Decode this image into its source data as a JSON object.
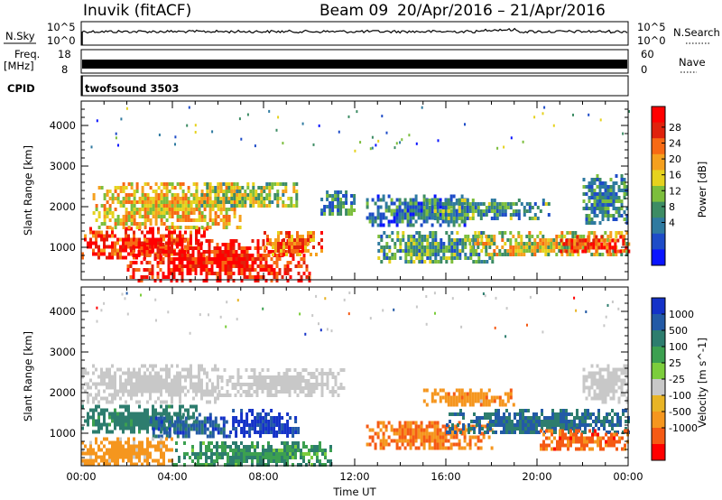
{
  "header": {
    "station": "Inuvik (fitACF)",
    "beam": "Beam 09",
    "date_range": "20/Apr/2016 – 21/Apr/2016"
  },
  "top_panels": {
    "nsky_label": "N.Sky",
    "nsearch_label": "N.Search",
    "noise_tick_high": "10^5",
    "noise_tick_low": "10^0",
    "freq_label": "Freq.",
    "freq_unit": "[MHz]",
    "freq_tick_high": "18",
    "freq_tick_low": "8",
    "nave_label": "Nave",
    "nave_tick_high": "60",
    "nave_tick_low": "0",
    "cpid_label": "CPID",
    "cpid_value": "twofsound 3503"
  },
  "colors": {
    "power_scale": [
      "#0a14ff",
      "#1e4cc8",
      "#2f7aa0",
      "#3d8c64",
      "#7cbe3c",
      "#e6d21e",
      "#f5a01e",
      "#f76a14",
      "#e0220c",
      "#ff0000"
    ],
    "velocity_scale": [
      "#1432c8",
      "#235aa6",
      "#2d7d6e",
      "#3ca050",
      "#7ccd3c",
      "#c8c8c8",
      "#e8b426",
      "#f5961e",
      "#f55a14",
      "#ff0000"
    ],
    "ground_scatter": "#c8c8c8"
  },
  "chart_data": [
    {
      "type": "heatmap",
      "panel": "power",
      "ylabel": "Slant Range [km]",
      "xlabel": "",
      "x_ticks": [
        "00:00",
        "04:00",
        "08:00",
        "12:00",
        "16:00",
        "20:00",
        "00:00"
      ],
      "y_ticks": [
        "1000",
        "2000",
        "3000",
        "4000"
      ],
      "ylim": [
        200,
        4600
      ],
      "xlim_hours": [
        0,
        24
      ],
      "colorbar_label": "Power [dB]",
      "colorbar_ticks": [
        "28",
        "24",
        "20",
        "16",
        "12",
        "8",
        "4"
      ],
      "colorbar_range": [
        0,
        30
      ],
      "regions": [
        {
          "t": [
            0.0,
            5.5
          ],
          "r": [
            700,
            1500
          ],
          "level": 26
        },
        {
          "t": [
            0.5,
            7.0
          ],
          "r": [
            1500,
            2600
          ],
          "level": 18
        },
        {
          "t": [
            2.0,
            10.0
          ],
          "r": [
            200,
            1200
          ],
          "level": 27
        },
        {
          "t": [
            5.0,
            9.5
          ],
          "r": [
            2000,
            2600
          ],
          "level": 14
        },
        {
          "t": [
            8.0,
            10.5
          ],
          "r": [
            800,
            1400
          ],
          "level": 22
        },
        {
          "t": [
            10.5,
            12.0
          ],
          "r": [
            1800,
            2400
          ],
          "level": 9
        },
        {
          "t": [
            12.5,
            17.0
          ],
          "r": [
            1500,
            2300
          ],
          "level": 8
        },
        {
          "t": [
            13.0,
            18.0
          ],
          "r": [
            600,
            1400
          ],
          "level": 11
        },
        {
          "t": [
            15.0,
            20.5
          ],
          "r": [
            1700,
            2200
          ],
          "level": 10
        },
        {
          "t": [
            17.0,
            24.0
          ],
          "r": [
            800,
            1400
          ],
          "level": 16
        },
        {
          "t": [
            21.0,
            24.0
          ],
          "r": [
            900,
            1300
          ],
          "level": 26
        },
        {
          "t": [
            22.0,
            24.0
          ],
          "r": [
            1600,
            2800
          ],
          "level": 9
        }
      ]
    },
    {
      "type": "heatmap",
      "panel": "velocity",
      "ylabel": "Slant Range [km]",
      "xlabel": "Time UT",
      "x_ticks": [
        "00:00",
        "04:00",
        "08:00",
        "12:00",
        "16:00",
        "20:00",
        "00:00"
      ],
      "y_ticks": [
        "1000",
        "2000",
        "3000",
        "4000"
      ],
      "ylim": [
        200,
        4600
      ],
      "xlim_hours": [
        0,
        24
      ],
      "colorbar_label": "Velocity [m s^-1]",
      "colorbar_ticks": [
        "1000",
        "500",
        "100",
        "25",
        "-25",
        "-100",
        "-500",
        "-1000"
      ],
      "colorbar_range": [
        -1000,
        1000
      ],
      "regions": [
        {
          "t": [
            0.0,
            6.0
          ],
          "r": [
            1800,
            2700
          ],
          "v": 0,
          "ground": true
        },
        {
          "t": [
            6.0,
            11.5
          ],
          "r": [
            1900,
            2600
          ],
          "v": 0,
          "ground": true
        },
        {
          "t": [
            0.0,
            5.0
          ],
          "r": [
            1000,
            1700
          ],
          "v": 150
        },
        {
          "t": [
            6.5,
            9.5
          ],
          "r": [
            900,
            1600
          ],
          "v": 900
        },
        {
          "t": [
            3.0,
            6.5
          ],
          "r": [
            900,
            1500
          ],
          "v": 400
        },
        {
          "t": [
            0.0,
            4.0
          ],
          "r": [
            200,
            900
          ],
          "v": -150
        },
        {
          "t": [
            4.0,
            11.0
          ],
          "r": [
            200,
            800
          ],
          "v": 60
        },
        {
          "t": [
            12.5,
            18.0
          ],
          "r": [
            600,
            1300
          ],
          "v": -300
        },
        {
          "t": [
            15.0,
            19.0
          ],
          "r": [
            1700,
            2100
          ],
          "v": -200
        },
        {
          "t": [
            16.0,
            24.0
          ],
          "r": [
            1000,
            1600
          ],
          "v": 300
        },
        {
          "t": [
            20.0,
            24.0
          ],
          "r": [
            600,
            1100
          ],
          "v": -400
        },
        {
          "t": [
            22.0,
            24.0
          ],
          "r": [
            1800,
            2700
          ],
          "v": 0,
          "ground": true
        }
      ]
    }
  ]
}
